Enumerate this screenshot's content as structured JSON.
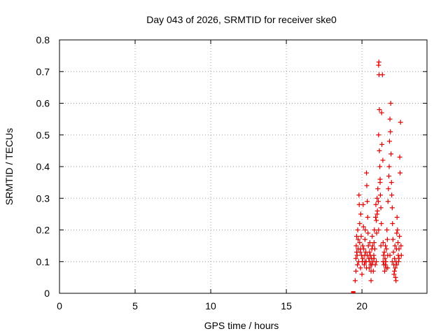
{
  "chart_data": {
    "type": "scatter",
    "title": "Day 043 of 2026, SRMTID for receiver ske0",
    "xlabel": "GPS time / hours",
    "ylabel": "SRMTID / TECUs",
    "xlim": [
      0,
      24.3
    ],
    "ylim": [
      0,
      0.8
    ],
    "xticks": [
      0,
      5,
      10,
      15,
      20
    ],
    "yticks": [
      0,
      0.1,
      0.2,
      0.3,
      0.4,
      0.5,
      0.6,
      0.7,
      0.8
    ],
    "xtick_labels": [
      "0",
      "5",
      "10",
      "15",
      "20"
    ],
    "ytick_labels": [
      "0",
      "0.1",
      "0.2",
      "0.3",
      "0.4",
      "0.5",
      "0.6",
      "0.7",
      "0.8"
    ],
    "grid": true,
    "marker": "+",
    "color": "#e00000",
    "zero_markers": [
      [
        19.4,
        0.0
      ],
      [
        19.45,
        0.0
      ]
    ],
    "series": [
      {
        "name": "SRMTID",
        "points": [
          [
            19.55,
            0.04
          ],
          [
            19.6,
            0.07
          ],
          [
            19.6,
            0.11
          ],
          [
            19.62,
            0.15
          ],
          [
            19.65,
            0.18
          ],
          [
            19.68,
            0.12
          ],
          [
            19.7,
            0.09
          ],
          [
            19.72,
            0.2
          ],
          [
            19.75,
            0.14
          ],
          [
            19.78,
            0.1
          ],
          [
            19.8,
            0.31
          ],
          [
            19.82,
            0.28
          ],
          [
            19.85,
            0.22
          ],
          [
            19.85,
            0.16
          ],
          [
            19.88,
            0.13
          ],
          [
            19.9,
            0.08
          ],
          [
            19.92,
            0.25
          ],
          [
            19.95,
            0.18
          ],
          [
            19.97,
            0.12
          ],
          [
            20.0,
            0.06
          ],
          [
            20.02,
            0.1
          ],
          [
            20.05,
            0.15
          ],
          [
            20.08,
            0.28
          ],
          [
            20.1,
            0.21
          ],
          [
            20.12,
            0.14
          ],
          [
            20.15,
            0.09
          ],
          [
            20.18,
            0.12
          ],
          [
            20.2,
            0.17
          ],
          [
            20.22,
            0.2
          ],
          [
            20.25,
            0.13
          ],
          [
            20.28,
            0.1
          ],
          [
            20.3,
            0.08
          ],
          [
            20.3,
            0.38
          ],
          [
            20.32,
            0.34
          ],
          [
            20.35,
            0.29
          ],
          [
            20.38,
            0.24
          ],
          [
            20.4,
            0.19
          ],
          [
            20.42,
            0.15
          ],
          [
            20.45,
            0.11
          ],
          [
            20.48,
            0.08
          ],
          [
            20.5,
            0.13
          ],
          [
            20.52,
            0.16
          ],
          [
            20.55,
            0.12
          ],
          [
            20.58,
            0.09
          ],
          [
            20.6,
            0.07
          ],
          [
            20.62,
            0.11
          ],
          [
            20.65,
            0.14
          ],
          [
            20.68,
            0.18
          ],
          [
            20.7,
            0.15
          ],
          [
            20.72,
            0.1
          ],
          [
            20.75,
            0.07
          ],
          [
            20.78,
            0.12
          ],
          [
            20.8,
            0.16
          ],
          [
            20.82,
            0.2
          ],
          [
            20.85,
            0.14
          ],
          [
            20.88,
            0.09
          ],
          [
            20.9,
            0.24
          ],
          [
            20.92,
            0.28
          ],
          [
            20.95,
            0.23
          ],
          [
            20.97,
            0.19
          ],
          [
            21.0,
            0.3
          ],
          [
            21.02,
            0.26
          ],
          [
            21.05,
            0.33
          ],
          [
            21.08,
            0.29
          ],
          [
            21.1,
            0.5
          ],
          [
            21.1,
            0.72
          ],
          [
            21.12,
            0.73
          ],
          [
            21.13,
            0.69
          ],
          [
            21.15,
            0.45
          ],
          [
            21.15,
            0.58
          ],
          [
            21.18,
            0.4
          ],
          [
            21.2,
            0.36
          ],
          [
            21.22,
            0.31
          ],
          [
            21.25,
            0.27
          ],
          [
            21.28,
            0.22
          ],
          [
            21.3,
            0.57
          ],
          [
            21.32,
            0.47
          ],
          [
            21.35,
            0.69
          ],
          [
            21.38,
            0.42
          ],
          [
            21.4,
            0.16
          ],
          [
            21.42,
            0.12
          ],
          [
            21.45,
            0.09
          ],
          [
            21.48,
            0.13
          ],
          [
            21.5,
            0.07
          ],
          [
            21.52,
            0.11
          ],
          [
            21.55,
            0.15
          ],
          [
            21.58,
            0.1
          ],
          [
            21.6,
            0.08
          ],
          [
            21.62,
            0.14
          ],
          [
            21.65,
            0.2
          ],
          [
            21.68,
            0.17
          ],
          [
            21.7,
            0.12
          ],
          [
            21.72,
            0.29
          ],
          [
            21.75,
            0.33
          ],
          [
            21.78,
            0.37
          ],
          [
            21.8,
            0.4
          ],
          [
            21.82,
            0.48
          ],
          [
            21.85,
            0.55
          ],
          [
            21.88,
            0.51
          ],
          [
            21.9,
            0.6
          ],
          [
            21.92,
            0.44
          ],
          [
            21.95,
            0.35
          ],
          [
            21.97,
            0.31
          ],
          [
            22.0,
            0.27
          ],
          [
            22.02,
            0.22
          ],
          [
            22.05,
            0.17
          ],
          [
            22.08,
            0.13
          ],
          [
            22.1,
            0.09
          ],
          [
            22.12,
            0.06
          ],
          [
            22.15,
            0.11
          ],
          [
            22.18,
            0.15
          ],
          [
            22.2,
            0.08
          ],
          [
            22.22,
            0.05
          ],
          [
            22.25,
            0.1
          ],
          [
            22.28,
            0.14
          ],
          [
            22.3,
            0.19
          ],
          [
            22.32,
            0.24
          ],
          [
            22.35,
            0.2
          ],
          [
            22.38,
            0.16
          ],
          [
            22.4,
            0.12
          ],
          [
            22.42,
            0.1
          ],
          [
            22.45,
            0.14
          ],
          [
            22.48,
            0.18
          ],
          [
            22.5,
            0.43
          ],
          [
            22.52,
            0.38
          ],
          [
            22.55,
            0.54
          ],
          [
            22.58,
            0.15
          ],
          [
            22.6,
            0.12
          ],
          [
            19.65,
            0.13
          ],
          [
            19.75,
            0.17
          ],
          [
            19.9,
            0.14
          ],
          [
            20.05,
            0.11
          ],
          [
            20.2,
            0.1
          ],
          [
            20.35,
            0.12
          ],
          [
            20.5,
            0.1
          ],
          [
            20.65,
            0.09
          ],
          [
            20.8,
            0.11
          ],
          [
            20.95,
            0.1
          ],
          [
            21.1,
            0.2
          ],
          [
            21.25,
            0.15
          ],
          [
            21.4,
            0.1
          ],
          [
            21.55,
            0.09
          ],
          [
            21.7,
            0.08
          ],
          [
            21.85,
            0.12
          ],
          [
            22.0,
            0.1
          ],
          [
            22.15,
            0.07
          ],
          [
            22.3,
            0.09
          ],
          [
            22.45,
            0.11
          ],
          [
            20.6,
            0.04
          ],
          [
            22.25,
            0.04
          ],
          [
            21.0,
            0.25
          ],
          [
            21.2,
            0.35
          ]
        ]
      }
    ]
  }
}
